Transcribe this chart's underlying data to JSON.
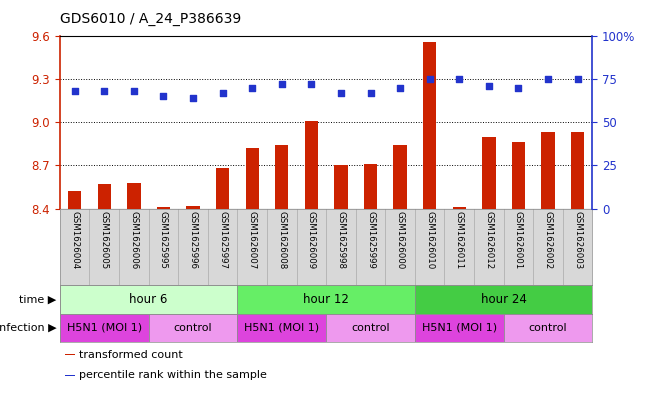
{
  "title": "GDS6010 / A_24_P386639",
  "samples": [
    "GSM1626004",
    "GSM1626005",
    "GSM1626006",
    "GSM1625995",
    "GSM1625996",
    "GSM1625997",
    "GSM1626007",
    "GSM1626008",
    "GSM1626009",
    "GSM1625998",
    "GSM1625999",
    "GSM1626000",
    "GSM1626010",
    "GSM1626011",
    "GSM1626012",
    "GSM1626001",
    "GSM1626002",
    "GSM1626003"
  ],
  "bar_values": [
    8.52,
    8.57,
    8.58,
    8.41,
    8.42,
    8.68,
    8.82,
    8.84,
    9.01,
    8.7,
    8.71,
    8.84,
    9.56,
    8.41,
    8.9,
    8.86,
    8.93,
    8.93
  ],
  "dot_values": [
    68,
    68,
    68,
    65,
    64,
    67,
    70,
    72,
    72,
    67,
    67,
    70,
    75,
    75,
    71,
    70,
    75,
    75
  ],
  "ylim_left": [
    8.4,
    9.6
  ],
  "ylim_right": [
    0,
    100
  ],
  "yticks_left": [
    8.4,
    8.7,
    9.0,
    9.3,
    9.6
  ],
  "yticks_right": [
    0,
    25,
    50,
    75,
    100
  ],
  "ytick_labels_right": [
    "0",
    "25",
    "50",
    "75",
    "100%"
  ],
  "bar_color": "#cc2200",
  "dot_color": "#2233cc",
  "bar_bottom": 8.4,
  "time_groups": [
    {
      "label": "hour 6",
      "start": 0,
      "end": 6,
      "color": "#ccffcc"
    },
    {
      "label": "hour 12",
      "start": 6,
      "end": 12,
      "color": "#66ee66"
    },
    {
      "label": "hour 24",
      "start": 12,
      "end": 18,
      "color": "#44cc44"
    }
  ],
  "infection_groups": [
    {
      "label": "H5N1 (MOI 1)",
      "start": 0,
      "end": 3,
      "color": "#dd44dd"
    },
    {
      "label": "control",
      "start": 3,
      "end": 6,
      "color": "#ee99ee"
    },
    {
      "label": "H5N1 (MOI 1)",
      "start": 6,
      "end": 9,
      "color": "#dd44dd"
    },
    {
      "label": "control",
      "start": 9,
      "end": 12,
      "color": "#ee99ee"
    },
    {
      "label": "H5N1 (MOI 1)",
      "start": 12,
      "end": 15,
      "color": "#dd44dd"
    },
    {
      "label": "control",
      "start": 15,
      "end": 18,
      "color": "#ee99ee"
    }
  ],
  "legend_items": [
    {
      "label": "transformed count",
      "color": "#cc2200"
    },
    {
      "label": "percentile rank within the sample",
      "color": "#2233cc"
    }
  ],
  "time_label": "time",
  "infection_label": "infection",
  "label_bg": "#d8d8d8",
  "left_axis_color": "#cc2200",
  "right_axis_color": "#2233cc"
}
